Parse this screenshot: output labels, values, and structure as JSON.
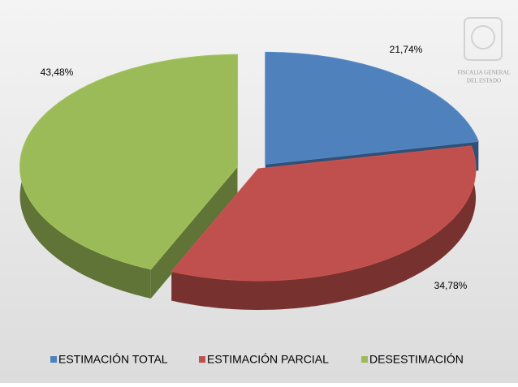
{
  "chart_data": {
    "type": "pie",
    "categories": [
      "ESTIMACIÓN TOTAL",
      "ESTIMACIÓN PARCIAL",
      "DESESTIMACIÓN"
    ],
    "values": [
      21.74,
      34.78,
      43.48
    ],
    "value_labels": [
      "21,74%",
      "34,78%",
      "43,48%"
    ],
    "colors": [
      "#4f81bd",
      "#c0504d",
      "#9bbb59"
    ],
    "legend": "bottom",
    "watermark": [
      "FISCALIA GENERAL",
      "DEL ESTADO"
    ]
  }
}
